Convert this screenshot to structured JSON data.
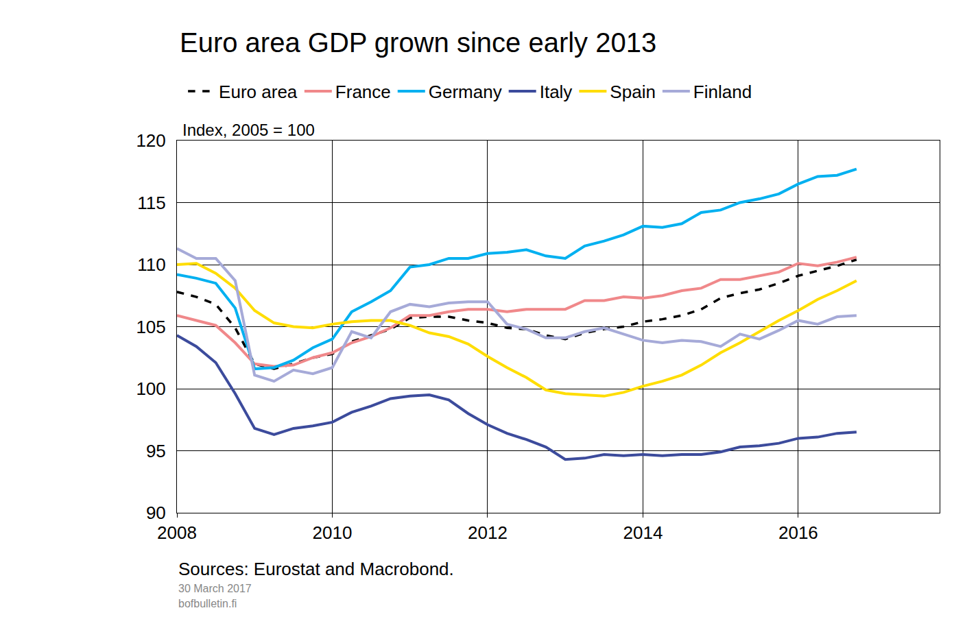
{
  "chart_data": {
    "type": "line",
    "title": "Euro area GDP grown since early 2013",
    "ylabel": "Index, 2005 = 100",
    "annotations": [
      "Sources: Eurostat and Macrobond.",
      "30 March 2017",
      "bofbulletin.fi"
    ],
    "x": [
      2008,
      2008.25,
      2008.5,
      2008.75,
      2009,
      2009.25,
      2009.5,
      2009.75,
      2010,
      2010.25,
      2010.5,
      2010.75,
      2011,
      2011.25,
      2011.5,
      2011.75,
      2012,
      2012.25,
      2012.5,
      2012.75,
      2013,
      2013.25,
      2013.5,
      2013.75,
      2014,
      2014.25,
      2014.5,
      2014.75,
      2015,
      2015.25,
      2015.5,
      2015.75,
      2016,
      2016.25,
      2016.5,
      2016.75
    ],
    "series": [
      {
        "name": "Euro area",
        "color": "#000000",
        "line_style": "dashed",
        "values": [
          107.8,
          107.4,
          106.8,
          104.9,
          102.0,
          101.6,
          102.0,
          102.5,
          102.8,
          103.8,
          104.3,
          104.8,
          105.7,
          105.8,
          105.8,
          105.5,
          105.3,
          104.9,
          104.8,
          104.3,
          104.0,
          104.5,
          104.8,
          105.0,
          105.4,
          105.6,
          105.9,
          106.4,
          107.3,
          107.7,
          108.0,
          108.5,
          109.1,
          109.5,
          109.9,
          110.4
        ]
      },
      {
        "name": "France",
        "color": "#f0888a",
        "line_style": "solid",
        "values": [
          105.9,
          105.5,
          105.1,
          103.7,
          102.0,
          101.8,
          101.9,
          102.5,
          102.9,
          103.7,
          104.2,
          104.9,
          105.9,
          105.9,
          106.2,
          106.4,
          106.4,
          106.2,
          106.4,
          106.4,
          106.4,
          107.1,
          107.1,
          107.4,
          107.3,
          107.5,
          107.9,
          108.1,
          108.8,
          108.8,
          109.1,
          109.4,
          110.1,
          109.9,
          110.2,
          110.6
        ]
      },
      {
        "name": "Germany",
        "color": "#00b0f0",
        "line_style": "solid",
        "values": [
          109.2,
          108.9,
          108.5,
          106.5,
          101.6,
          101.7,
          102.3,
          103.3,
          104.0,
          106.2,
          107.0,
          107.9,
          109.8,
          110.0,
          110.5,
          110.5,
          110.9,
          111.0,
          111.2,
          110.7,
          110.5,
          111.5,
          111.9,
          112.4,
          113.1,
          113.0,
          113.3,
          114.2,
          114.4,
          115.0,
          115.3,
          115.7,
          116.5,
          117.1,
          117.2,
          117.7
        ]
      },
      {
        "name": "Italy",
        "color": "#3c4b9c",
        "line_style": "solid",
        "values": [
          104.3,
          103.4,
          102.1,
          99.6,
          96.8,
          96.3,
          96.8,
          97.0,
          97.3,
          98.1,
          98.6,
          99.2,
          99.4,
          99.5,
          99.1,
          98.0,
          97.1,
          96.4,
          95.9,
          95.3,
          94.3,
          94.4,
          94.7,
          94.6,
          94.7,
          94.6,
          94.7,
          94.7,
          94.9,
          95.3,
          95.4,
          95.6,
          96.0,
          96.1,
          96.4,
          96.5
        ]
      },
      {
        "name": "Spain",
        "color": "#ffdd00",
        "line_style": "solid",
        "values": [
          110.0,
          110.1,
          109.3,
          108.1,
          106.3,
          105.3,
          105.0,
          104.9,
          105.2,
          105.4,
          105.5,
          105.5,
          105.1,
          104.5,
          104.2,
          103.6,
          102.6,
          101.7,
          100.9,
          99.9,
          99.6,
          99.5,
          99.4,
          99.7,
          100.2,
          100.6,
          101.1,
          101.9,
          102.9,
          103.7,
          104.6,
          105.5,
          106.3,
          107.2,
          107.9,
          108.7
        ]
      },
      {
        "name": "Finland",
        "color": "#a6aad8",
        "line_style": "solid",
        "values": [
          111.3,
          110.5,
          110.5,
          108.7,
          101.1,
          100.6,
          101.5,
          101.2,
          101.7,
          104.6,
          104.1,
          106.2,
          106.8,
          106.6,
          106.9,
          107.0,
          107.0,
          105.2,
          104.8,
          104.1,
          104.1,
          104.6,
          104.9,
          104.4,
          103.9,
          103.7,
          103.9,
          103.8,
          103.4,
          104.4,
          104.0,
          104.7,
          105.5,
          105.2,
          105.8,
          105.9
        ]
      }
    ],
    "xlim": [
      2008,
      2017.82
    ],
    "xticks": [
      2008,
      2010,
      2012,
      2014,
      2016
    ],
    "ylim": [
      90,
      120
    ],
    "yticks": [
      90,
      95,
      100,
      105,
      110,
      115,
      120
    ],
    "grid": true,
    "legend": "top"
  }
}
